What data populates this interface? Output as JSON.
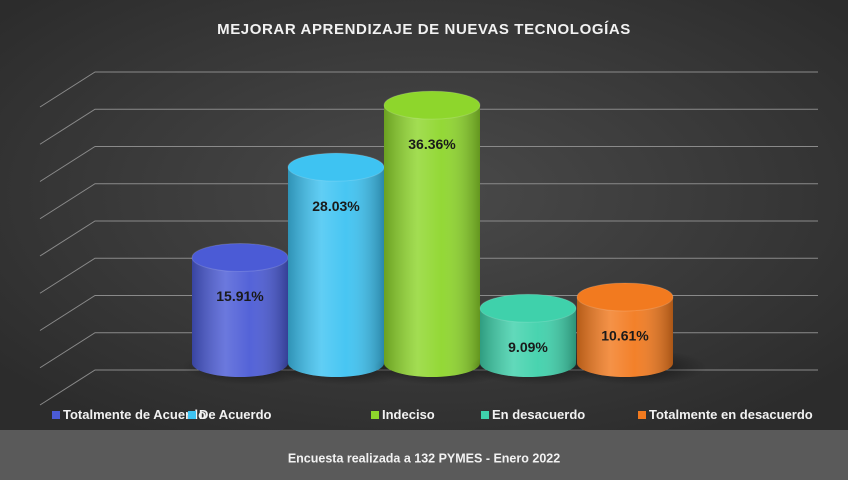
{
  "chart_data": {
    "type": "bar",
    "title": "MEJORAR APRENDIZAJE DE NUEVAS TECNOLOGÍAS",
    "categories": [
      "Totalmente de Acuerdo",
      "De Acuerdo",
      "Indeciso",
      "En desacuerdo",
      "Totalmente en desacuerdo"
    ],
    "values": [
      15.91,
      28.03,
      36.36,
      9.09,
      10.61
    ],
    "value_labels": [
      "15.91%",
      "28.03%",
      "36.36%",
      "9.09%",
      "10.61%"
    ],
    "colors": [
      "#4b5bd6",
      "#3ec3f2",
      "#8ed62c",
      "#3fd1ab",
      "#f27a1f"
    ],
    "ylim": [
      0,
      40
    ],
    "yticks": [
      0,
      5,
      10,
      15,
      20,
      25,
      30,
      35,
      40
    ],
    "grid": true,
    "legend": "bottom",
    "caption": "Encuesta realizada a 132 PYMES - Enero 2022"
  }
}
